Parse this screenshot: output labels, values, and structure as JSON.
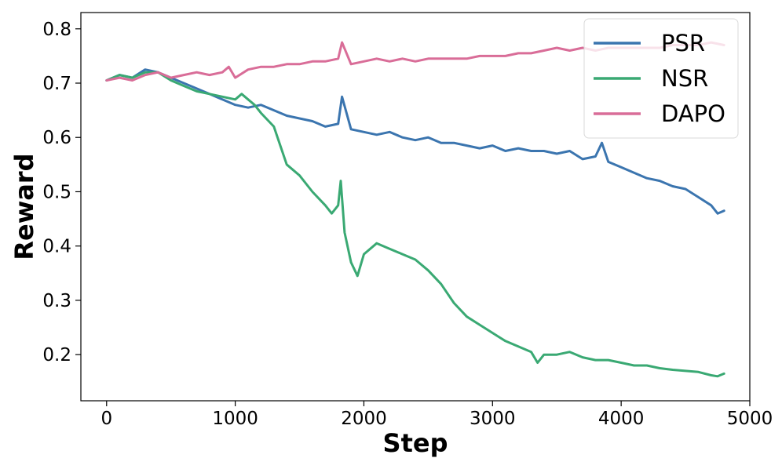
{
  "chart_data": {
    "type": "line",
    "xlabel": "Step",
    "ylabel": "Reward",
    "xlim": [
      -200,
      5000
    ],
    "ylim": [
      0.115,
      0.83
    ],
    "xticks": [
      0,
      1000,
      2000,
      3000,
      4000,
      5000
    ],
    "xtick_labels": [
      "0",
      "1000",
      "2000",
      "3000",
      "4000",
      "5000"
    ],
    "yticks": [
      0.2,
      0.3,
      0.4,
      0.5,
      0.6,
      0.7,
      0.8
    ],
    "ytick_labels": [
      "0.2",
      "0.3",
      "0.4",
      "0.5",
      "0.6",
      "0.7",
      "0.8"
    ],
    "grid": false,
    "legend_position": "top-right",
    "series": [
      {
        "name": "PSR",
        "color": "#3b75af",
        "x": [
          0,
          100,
          200,
          300,
          400,
          500,
          600,
          700,
          800,
          900,
          1000,
          1100,
          1200,
          1300,
          1400,
          1500,
          1600,
          1700,
          1800,
          1830,
          1900,
          2000,
          2100,
          2200,
          2300,
          2400,
          2500,
          2600,
          2700,
          2800,
          2900,
          3000,
          3100,
          3200,
          3300,
          3400,
          3500,
          3600,
          3700,
          3800,
          3850,
          3900,
          4000,
          4100,
          4200,
          4300,
          4400,
          4500,
          4600,
          4700,
          4750,
          4800
        ],
        "y": [
          0.705,
          0.715,
          0.71,
          0.725,
          0.72,
          0.71,
          0.7,
          0.69,
          0.68,
          0.67,
          0.66,
          0.655,
          0.66,
          0.65,
          0.64,
          0.635,
          0.63,
          0.62,
          0.625,
          0.675,
          0.615,
          0.61,
          0.605,
          0.61,
          0.6,
          0.595,
          0.6,
          0.59,
          0.59,
          0.585,
          0.58,
          0.585,
          0.575,
          0.58,
          0.575,
          0.575,
          0.57,
          0.575,
          0.56,
          0.565,
          0.59,
          0.555,
          0.545,
          0.535,
          0.525,
          0.52,
          0.51,
          0.505,
          0.49,
          0.475,
          0.46,
          0.465
        ]
      },
      {
        "name": "NSR",
        "color": "#3aa973",
        "x": [
          0,
          100,
          200,
          300,
          400,
          500,
          600,
          700,
          800,
          900,
          1000,
          1050,
          1100,
          1150,
          1200,
          1300,
          1350,
          1400,
          1500,
          1600,
          1700,
          1750,
          1800,
          1820,
          1850,
          1900,
          1950,
          2000,
          2100,
          2200,
          2300,
          2400,
          2500,
          2600,
          2700,
          2800,
          2900,
          3000,
          3100,
          3200,
          3300,
          3350,
          3400,
          3500,
          3600,
          3700,
          3800,
          3900,
          4000,
          4100,
          4200,
          4300,
          4400,
          4500,
          4600,
          4700,
          4750,
          4800
        ],
        "y": [
          0.705,
          0.715,
          0.71,
          0.72,
          0.72,
          0.705,
          0.695,
          0.685,
          0.68,
          0.675,
          0.67,
          0.68,
          0.67,
          0.66,
          0.645,
          0.62,
          0.585,
          0.55,
          0.53,
          0.5,
          0.475,
          0.46,
          0.475,
          0.52,
          0.425,
          0.37,
          0.345,
          0.385,
          0.405,
          0.395,
          0.385,
          0.375,
          0.355,
          0.33,
          0.295,
          0.27,
          0.255,
          0.24,
          0.225,
          0.215,
          0.205,
          0.185,
          0.2,
          0.2,
          0.205,
          0.195,
          0.19,
          0.19,
          0.185,
          0.18,
          0.18,
          0.175,
          0.172,
          0.17,
          0.168,
          0.162,
          0.16,
          0.165
        ]
      },
      {
        "name": "DAPO",
        "color": "#d96d98",
        "x": [
          0,
          100,
          200,
          300,
          400,
          500,
          600,
          700,
          800,
          900,
          950,
          1000,
          1100,
          1200,
          1300,
          1400,
          1500,
          1600,
          1700,
          1800,
          1830,
          1900,
          2000,
          2100,
          2200,
          2300,
          2400,
          2500,
          2600,
          2700,
          2800,
          2900,
          3000,
          3100,
          3200,
          3300,
          3400,
          3500,
          3600,
          3700,
          3800,
          3900,
          4000,
          4100,
          4200,
          4300,
          4400,
          4500,
          4600,
          4700,
          4800
        ],
        "y": [
          0.705,
          0.71,
          0.705,
          0.715,
          0.72,
          0.71,
          0.715,
          0.72,
          0.715,
          0.72,
          0.73,
          0.71,
          0.725,
          0.73,
          0.73,
          0.735,
          0.735,
          0.74,
          0.74,
          0.745,
          0.775,
          0.735,
          0.74,
          0.745,
          0.74,
          0.745,
          0.74,
          0.745,
          0.745,
          0.745,
          0.745,
          0.75,
          0.75,
          0.75,
          0.755,
          0.755,
          0.76,
          0.765,
          0.76,
          0.765,
          0.76,
          0.765,
          0.765,
          0.765,
          0.765,
          0.765,
          0.77,
          0.77,
          0.77,
          0.775,
          0.77
        ]
      }
    ]
  }
}
